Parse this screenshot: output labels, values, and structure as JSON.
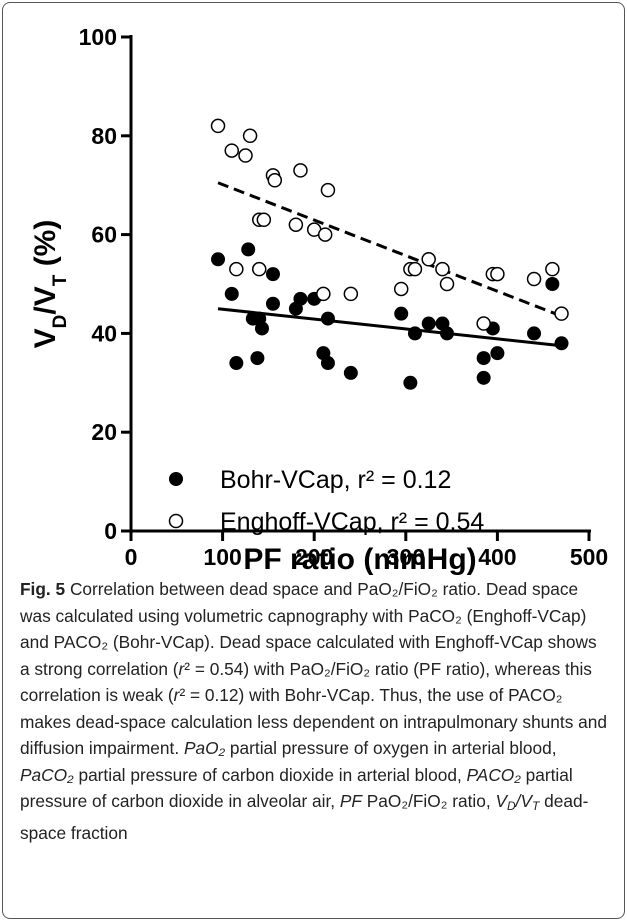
{
  "chart_data": {
    "type": "scatter",
    "xlabel": "PF ratio (mmHg)",
    "ylabel": [
      "V",
      "D",
      "/V",
      "T",
      " (%)"
    ],
    "xlim": [
      0,
      500
    ],
    "xticks": [
      0,
      100,
      200,
      300,
      400,
      500
    ],
    "ylim": [
      0,
      100
    ],
    "yticks": [
      0,
      20,
      40,
      60,
      80,
      100
    ],
    "legend": "lower left",
    "series": [
      {
        "name": "Bohr-VCap, r² = 0.12",
        "color": "#000000",
        "marker": "filled",
        "x": [
          95,
          110,
          115,
          128,
          133,
          138,
          143,
          140,
          155,
          155,
          180,
          185,
          200,
          210,
          215,
          215,
          240,
          295,
          305,
          310,
          325,
          340,
          345,
          385,
          385,
          395,
          400,
          440,
          460,
          470
        ],
        "values": [
          55,
          48,
          34,
          57,
          43,
          35,
          41,
          43,
          52,
          46,
          45,
          47,
          47,
          36,
          34,
          43,
          32,
          44,
          30,
          40,
          42,
          42,
          40,
          31,
          35,
          41,
          36,
          40,
          50,
          38
        ],
        "fit": {
          "x": [
            95,
            470
          ],
          "values": [
            45,
            37.5
          ],
          "dash": false
        }
      },
      {
        "name": "Enghoff-VCap, r² = 0.54",
        "color": "#000000",
        "marker": "open",
        "x": [
          95,
          110,
          115,
          125,
          130,
          140,
          140,
          145,
          155,
          157,
          180,
          185,
          200,
          210,
          212,
          215,
          240,
          295,
          305,
          310,
          325,
          340,
          345,
          385,
          395,
          400,
          440,
          460,
          470
        ],
        "values": [
          82,
          77,
          53,
          76,
          80,
          63,
          53,
          63,
          72,
          71,
          62,
          73,
          61,
          48,
          60,
          69,
          48,
          49,
          53,
          53,
          55,
          53,
          50,
          42,
          52,
          52,
          51,
          53,
          44
        ],
        "fit": {
          "x": [
            95,
            470
          ],
          "values": [
            70.5,
            43.5
          ],
          "dash": true
        }
      }
    ]
  },
  "caption": {
    "label": "Fig. 5",
    "text": [
      " Correlation between dead space and PaO₂/FiO₂ ratio. Dead space was calculated using volumetric capnography with PaCO₂ (Enghoff-VCap) and PACO₂ (Bohr-VCap). Dead space calculated with Enghoff-VCap shows a strong correlation (",
      "r",
      "² = 0.54) with PaO₂/FiO₂ ratio (PF ratio), whereas this correlation is weak (",
      "r",
      "² = 0.12) with Bohr-VCap. Thus, the use of PACO₂ makes dead-space calculation less dependent on intrapulmonary shunts and diffusion impairment. ",
      "PaO₂",
      " partial pressure of oxygen in arterial blood, ",
      "PaCO₂",
      " partial pressure of carbon dioxide in arterial blood, ",
      "PACO₂",
      " partial pressure of carbon dioxide in alveolar air, ",
      "PF",
      " PaO₂/FiO₂ ratio, ",
      "V",
      "D",
      "/V",
      "T",
      " dead-space fraction"
    ]
  }
}
